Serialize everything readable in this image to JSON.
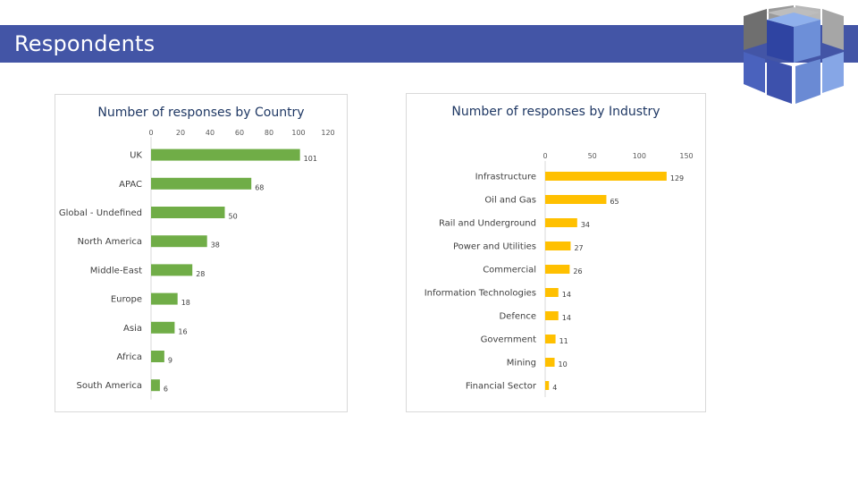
{
  "page": {
    "title": "Respondents"
  },
  "colors": {
    "banner": "#4355a6",
    "country_bar": "#70ad47",
    "industry_bar": "#ffc000"
  },
  "logo": {
    "icon": "cube-grid-logo-icon"
  },
  "chart_data": [
    {
      "type": "bar",
      "orientation": "horizontal",
      "title": "Number of responses by Country",
      "categories": [
        "UK",
        "APAC",
        "Global - Undefined",
        "North America",
        "Middle-East",
        "Europe",
        "Asia",
        "Africa",
        "South America"
      ],
      "values": [
        101,
        68,
        50,
        38,
        28,
        18,
        16,
        9,
        6
      ],
      "xlim": [
        0,
        120
      ],
      "xticks": [
        "0",
        "20",
        "40",
        "60",
        "80",
        "100",
        "120"
      ],
      "axis_position": "top",
      "grid": false,
      "legend": "none"
    },
    {
      "type": "bar",
      "orientation": "horizontal",
      "title": "Number of responses by Industry",
      "categories": [
        "Infrastructure",
        "Oil and Gas",
        "Rail and Underground",
        "Power and Utilities",
        "Commercial",
        "Information Technologies",
        "Defence",
        "Government",
        "Mining",
        "Financial Sector"
      ],
      "values": [
        129,
        65,
        34,
        27,
        26,
        14,
        14,
        11,
        10,
        4
      ],
      "xlim": [
        0,
        150
      ],
      "xticks": [
        "0",
        "50",
        "100",
        "150"
      ],
      "axis_position": "top",
      "grid": false,
      "legend": "none"
    }
  ]
}
